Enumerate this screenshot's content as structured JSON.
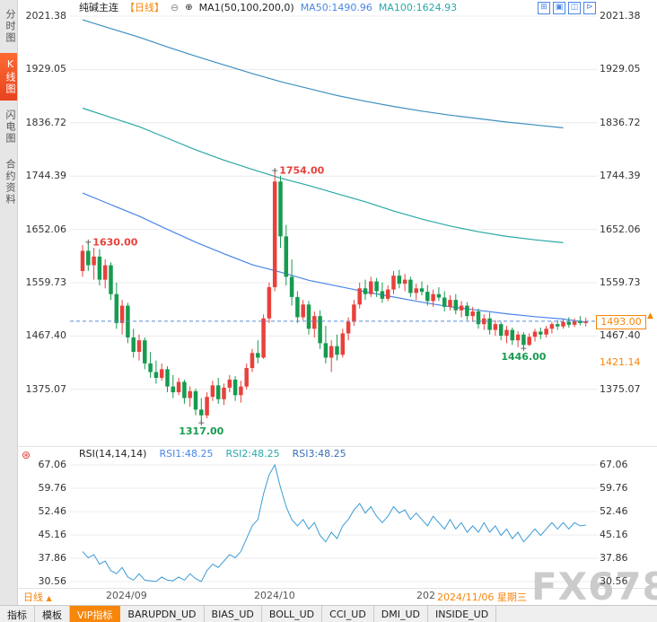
{
  "header": {
    "title": "纯碱主连",
    "period_tag": "【日线】",
    "collapse_icon": "⊖",
    "indicator_icon": "⊕",
    "ma_label": "MA1(50,100,200,0)",
    "ma50_label": "MA50:1490.96",
    "ma100_label": "MA100:1624.93",
    "toolbar_icons": [
      {
        "name": "pan-icon",
        "glyph": "⊞"
      },
      {
        "name": "zoom-box-icon",
        "glyph": "▣"
      },
      {
        "name": "layout-icon",
        "glyph": "◫"
      },
      {
        "name": "next-panel-icon",
        "glyph": "⊳"
      }
    ]
  },
  "sidebar": {
    "items": [
      {
        "name": "sidebar-item-time-chart",
        "label": "分时图",
        "active": false
      },
      {
        "name": "sidebar-item-kline-chart",
        "label": "K线图",
        "active": true
      },
      {
        "name": "sidebar-item-flash-chart",
        "label": "闪电图",
        "active": false
      },
      {
        "name": "sidebar-item-contract-info",
        "label": "合约资料",
        "active": false
      }
    ]
  },
  "main_chart": {
    "y_axis_labels": [
      "2021.38",
      "1929.05",
      "1836.72",
      "1744.39",
      "1652.06",
      "1559.73",
      "1467.40",
      "1375.07"
    ],
    "current_price_label": "1493.00",
    "current_price_arrow": "▲",
    "prev_settle_label": "1421.14"
  },
  "rsi_panel": {
    "icon": "⊛",
    "label": "RSI(14,14,14)",
    "rsi1": "RSI1:48.25",
    "rsi2": "RSI2:48.25",
    "rsi3": "RSI3:48.25",
    "y_axis_labels": [
      "67.06",
      "59.76",
      "52.46",
      "45.16",
      "37.86",
      "30.56"
    ]
  },
  "x_axis": {
    "period_label": "日线",
    "period_arrow": "▲",
    "ticks": [
      "2024/09",
      "2024/10",
      "202"
    ],
    "current_date": "2024/11/06 星期三"
  },
  "bottom_bar": {
    "tabs": [
      {
        "name": "tab-indicators",
        "label": "指标",
        "active": false
      },
      {
        "name": "tab-templates",
        "label": "模板",
        "active": false
      },
      {
        "name": "tab-vip-indicators",
        "label": "VIP指标",
        "active": true
      },
      {
        "name": "tab-barupdn-ud",
        "label": "BARUPDN_UD",
        "active": false
      },
      {
        "name": "tab-bias-ud",
        "label": "BIAS_UD",
        "active": false
      },
      {
        "name": "tab-boll-ud",
        "label": "BOLL_UD",
        "active": false
      },
      {
        "name": "tab-cci-ud",
        "label": "CCI_UD",
        "active": false
      },
      {
        "name": "tab-dmi-ud",
        "label": "DMI_UD",
        "active": false
      },
      {
        "name": "tab-inside-ud",
        "label": "INSIDE_UD",
        "active": false
      }
    ]
  },
  "watermark": "FX678",
  "colors": {
    "up": "#e8413c",
    "down": "#169b4f",
    "accent_orange": "#f7860b",
    "ma50": "#4a86e8",
    "ma100": "#2aa8a8",
    "ma200": "#3f8fc0",
    "rsi_line": "#3a9bd5",
    "dashed_price_line": "#5b8ed6",
    "grid": "#ececec"
  },
  "chart_data": {
    "type": "candlestick",
    "title": "纯碱主连 日线",
    "price_ticks": [
      2021.38,
      1929.05,
      1836.72,
      1744.39,
      1652.06,
      1559.73,
      1467.4,
      1375.07
    ],
    "current_price": 1493.0,
    "prev_settle": 1421.14,
    "ma_values": {
      "ma50": 1490.96,
      "ma100": 1624.93
    },
    "candles": [
      [
        1580,
        1625,
        1570,
        1615
      ],
      [
        1615,
        1630,
        1580,
        1590
      ],
      [
        1590,
        1620,
        1565,
        1605
      ],
      [
        1605,
        1618,
        1555,
        1565
      ],
      [
        1565,
        1600,
        1550,
        1590
      ],
      [
        1590,
        1595,
        1530,
        1540
      ],
      [
        1540,
        1560,
        1480,
        1490
      ],
      [
        1490,
        1530,
        1470,
        1520
      ],
      [
        1520,
        1525,
        1455,
        1465
      ],
      [
        1465,
        1480,
        1430,
        1440
      ],
      [
        1440,
        1470,
        1425,
        1460
      ],
      [
        1460,
        1465,
        1410,
        1420
      ],
      [
        1420,
        1440,
        1395,
        1405
      ],
      [
        1405,
        1425,
        1385,
        1395
      ],
      [
        1395,
        1420,
        1390,
        1410
      ],
      [
        1410,
        1415,
        1370,
        1380
      ],
      [
        1380,
        1400,
        1360,
        1370
      ],
      [
        1370,
        1395,
        1365,
        1388
      ],
      [
        1388,
        1392,
        1350,
        1360
      ],
      [
        1360,
        1380,
        1345,
        1372
      ],
      [
        1372,
        1376,
        1330,
        1340
      ],
      [
        1340,
        1360,
        1317,
        1330
      ],
      [
        1330,
        1370,
        1325,
        1362
      ],
      [
        1362,
        1390,
        1355,
        1382
      ],
      [
        1382,
        1395,
        1350,
        1358
      ],
      [
        1358,
        1385,
        1348,
        1378
      ],
      [
        1378,
        1400,
        1370,
        1392
      ],
      [
        1392,
        1398,
        1355,
        1365
      ],
      [
        1365,
        1390,
        1352,
        1380
      ],
      [
        1380,
        1420,
        1375,
        1412
      ],
      [
        1412,
        1445,
        1405,
        1438
      ],
      [
        1438,
        1460,
        1420,
        1430
      ],
      [
        1430,
        1505,
        1428,
        1498
      ],
      [
        1498,
        1560,
        1490,
        1552
      ],
      [
        1552,
        1754,
        1545,
        1735
      ],
      [
        1735,
        1745,
        1620,
        1640
      ],
      [
        1640,
        1660,
        1555,
        1570
      ],
      [
        1570,
        1600,
        1520,
        1535
      ],
      [
        1535,
        1545,
        1490,
        1500
      ],
      [
        1500,
        1530,
        1495,
        1522
      ],
      [
        1522,
        1528,
        1470,
        1480
      ],
      [
        1480,
        1510,
        1465,
        1502
      ],
      [
        1502,
        1512,
        1445,
        1455
      ],
      [
        1455,
        1485,
        1420,
        1430
      ],
      [
        1430,
        1460,
        1405,
        1450
      ],
      [
        1450,
        1470,
        1425,
        1435
      ],
      [
        1435,
        1480,
        1430,
        1472
      ],
      [
        1472,
        1500,
        1460,
        1492
      ],
      [
        1492,
        1530,
        1485,
        1522
      ],
      [
        1522,
        1560,
        1515,
        1550
      ],
      [
        1550,
        1565,
        1530,
        1540
      ],
      [
        1540,
        1570,
        1535,
        1562
      ],
      [
        1562,
        1568,
        1535,
        1545
      ],
      [
        1545,
        1560,
        1525,
        1532
      ],
      [
        1532,
        1555,
        1528,
        1548
      ],
      [
        1548,
        1580,
        1540,
        1572
      ],
      [
        1572,
        1582,
        1550,
        1558
      ],
      [
        1558,
        1575,
        1545,
        1565
      ],
      [
        1565,
        1570,
        1535,
        1542
      ],
      [
        1542,
        1558,
        1530,
        1550
      ],
      [
        1550,
        1562,
        1538,
        1544
      ],
      [
        1544,
        1556,
        1520,
        1528
      ],
      [
        1528,
        1548,
        1518,
        1540
      ],
      [
        1540,
        1552,
        1528,
        1534
      ],
      [
        1534,
        1545,
        1510,
        1518
      ],
      [
        1518,
        1538,
        1512,
        1530
      ],
      [
        1530,
        1540,
        1505,
        1512
      ],
      [
        1512,
        1528,
        1500,
        1520
      ],
      [
        1520,
        1526,
        1495,
        1502
      ],
      [
        1502,
        1518,
        1492,
        1510
      ],
      [
        1510,
        1515,
        1480,
        1488
      ],
      [
        1488,
        1505,
        1478,
        1498
      ],
      [
        1498,
        1508,
        1470,
        1478
      ],
      [
        1478,
        1495,
        1468,
        1488
      ],
      [
        1488,
        1492,
        1460,
        1468
      ],
      [
        1468,
        1485,
        1455,
        1478
      ],
      [
        1478,
        1482,
        1452,
        1460
      ],
      [
        1460,
        1476,
        1448,
        1470
      ],
      [
        1470,
        1474,
        1446,
        1452
      ],
      [
        1452,
        1472,
        1450,
        1466
      ],
      [
        1466,
        1480,
        1458,
        1475
      ],
      [
        1475,
        1482,
        1462,
        1470
      ],
      [
        1470,
        1485,
        1465,
        1480
      ],
      [
        1480,
        1492,
        1472,
        1488
      ],
      [
        1488,
        1495,
        1478,
        1484
      ],
      [
        1484,
        1496,
        1480,
        1492
      ],
      [
        1492,
        1500,
        1482,
        1487
      ],
      [
        1487,
        1498,
        1483,
        1494
      ],
      [
        1494,
        1502,
        1486,
        1490
      ],
      [
        1490,
        1499,
        1484,
        1493
      ]
    ],
    "ma_sample_step": 5,
    "ma200_series": [
      2015,
      2000,
      1985,
      1968,
      1952,
      1937,
      1922,
      1908,
      1896,
      1884,
      1874,
      1865,
      1857,
      1850,
      1844,
      1838,
      1833,
      1828
    ],
    "ma100_series": [
      1862,
      1846,
      1830,
      1810,
      1790,
      1772,
      1756,
      1741,
      1728,
      1714,
      1700,
      1684,
      1670,
      1658,
      1648,
      1640,
      1634,
      1629
    ],
    "ma50_series": [
      1715,
      1695,
      1675,
      1652,
      1630,
      1610,
      1591,
      1578,
      1564,
      1554,
      1544,
      1535,
      1526,
      1518,
      1512,
      1506,
      1501,
      1497,
      1491
    ],
    "rsi_ticks": [
      67.06,
      59.76,
      52.46,
      45.16,
      37.86,
      30.56
    ],
    "rsi_values": [
      40,
      38,
      39,
      36,
      37,
      34,
      33,
      35,
      32,
      31,
      33,
      31,
      30.8,
      30.6,
      32,
      31,
      30.8,
      32,
      31,
      33,
      31.5,
      30.6,
      34,
      36,
      35,
      37,
      39,
      38,
      40,
      44,
      48,
      50,
      58,
      64,
      67.06,
      60,
      54,
      50,
      48,
      50,
      47,
      49,
      45,
      43,
      46,
      44,
      48,
      50,
      53,
      55,
      52,
      54,
      51,
      49,
      51,
      54,
      52,
      53,
      50,
      52,
      50,
      48,
      51,
      49,
      47,
      50,
      47,
      49,
      46,
      48,
      46,
      49,
      46,
      48,
      45,
      47,
      44,
      46,
      43,
      45,
      47,
      45,
      47,
      49,
      47,
      49,
      47,
      49,
      48,
      48.25
    ],
    "annotations": [
      {
        "text": "1630.00",
        "bar": 1,
        "price": 1630,
        "color": "#e8413c",
        "placement": "right"
      },
      {
        "text": "1754.00",
        "bar": 34,
        "price": 1754,
        "color": "#e8413c",
        "placement": "right"
      },
      {
        "text": "1317.00",
        "bar": 21,
        "price": 1317,
        "color": "#169b4f",
        "placement": "below"
      },
      {
        "text": "1446.00",
        "bar": 78,
        "price": 1446,
        "color": "#169b4f",
        "placement": "below"
      }
    ]
  }
}
